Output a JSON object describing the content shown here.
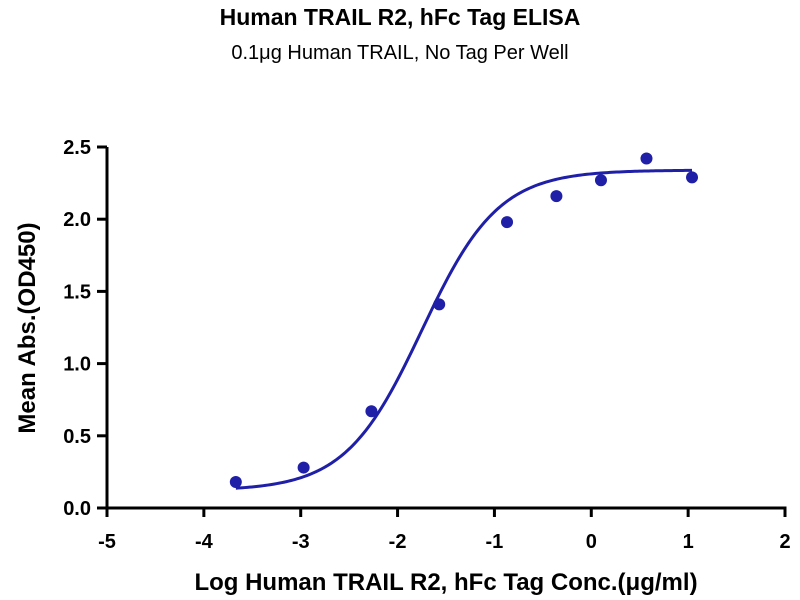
{
  "chart_data": {
    "type": "scatter",
    "title": "Human TRAIL R2, hFc Tag ELISA",
    "subtitle": "0.1μg Human TRAIL, No Tag Per Well",
    "xlabel": "Log Human TRAIL R2, hFc Tag Conc.(μg/ml)",
    "ylabel": "Mean Abs.(OD450)",
    "xlim": [
      -5,
      2
    ],
    "ylim": [
      0,
      2.5
    ],
    "xticks": [
      -5,
      -4,
      -3,
      -2,
      -1,
      0,
      1,
      2
    ],
    "yticks": [
      0.0,
      0.5,
      1.0,
      1.5,
      2.0,
      2.5
    ],
    "xtick_labels": [
      "-5",
      "-4",
      "-3",
      "-2",
      "-1",
      "0",
      "1",
      "2"
    ],
    "ytick_labels": [
      "0.0",
      "0.5",
      "1.0",
      "1.5",
      "2.0",
      "2.5"
    ],
    "grid": false,
    "color": "#1f1fa8",
    "series": [
      {
        "x": [
          -3.67,
          -2.97,
          -2.27,
          -1.57,
          -0.87,
          -0.36,
          0.1,
          0.57,
          1.04
        ],
        "y": [
          0.18,
          0.28,
          0.67,
          1.41,
          1.98,
          2.16,
          2.27,
          2.42,
          2.29
        ]
      }
    ],
    "fit": {
      "type": "4PL",
      "bottom": 0.12,
      "top": 2.34,
      "logEC50": -1.75,
      "hill": 1.1
    }
  }
}
